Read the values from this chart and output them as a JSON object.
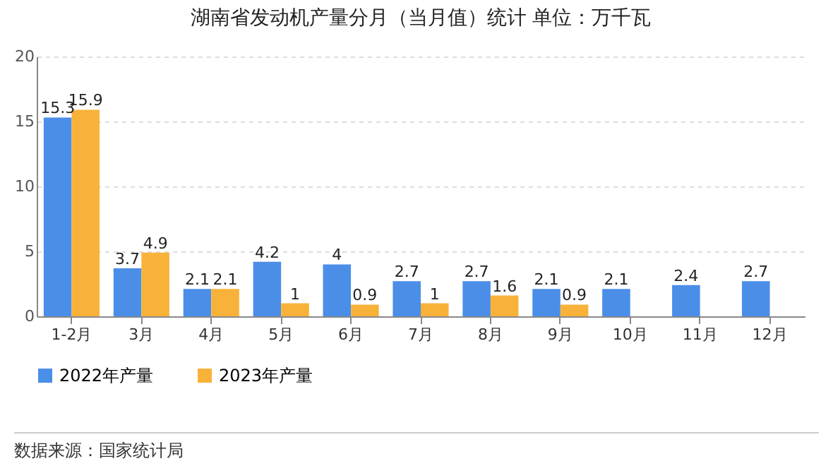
{
  "chart_data": {
    "type": "bar",
    "title": "湖南省发动机产量分月（当月值）统计  单位：万千瓦",
    "categories": [
      "1-2月",
      "3月",
      "4月",
      "5月",
      "6月",
      "7月",
      "8月",
      "9月",
      "10月",
      "11月",
      "12月"
    ],
    "series": [
      {
        "name": "2022年产量",
        "color": "#4a8ee8",
        "values": [
          15.3,
          3.7,
          2.1,
          4.2,
          4,
          2.7,
          2.7,
          2.1,
          2.1,
          2.4,
          2.7
        ]
      },
      {
        "name": "2023年产量",
        "color": "#f8b23a",
        "values": [
          15.9,
          4.9,
          2.1,
          1,
          0.9,
          1,
          1.6,
          0.9,
          null,
          null,
          null
        ]
      }
    ],
    "ylim": [
      0,
      20
    ],
    "yticks": [
      0,
      5,
      10,
      15,
      20
    ],
    "grid": "y",
    "legend": "bottom",
    "data_labels": true,
    "annotations": [
      "数据来源：国家统计局"
    ]
  }
}
